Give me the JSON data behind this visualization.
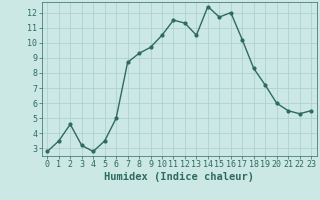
{
  "x": [
    0,
    1,
    2,
    3,
    4,
    5,
    6,
    7,
    8,
    9,
    10,
    11,
    12,
    13,
    14,
    15,
    16,
    17,
    18,
    19,
    20,
    21,
    22,
    23
  ],
  "y": [
    2.8,
    3.5,
    4.6,
    3.2,
    2.8,
    3.5,
    5.0,
    8.7,
    9.3,
    9.7,
    10.5,
    11.5,
    11.3,
    10.5,
    12.4,
    11.7,
    12.0,
    10.2,
    8.3,
    7.2,
    6.0,
    5.5,
    5.3,
    5.5
  ],
  "line_color": "#2e6b5e",
  "marker": "o",
  "markersize": 2.0,
  "linewidth": 1.0,
  "xlabel": "Humidex (Indice chaleur)",
  "xlim": [
    -0.5,
    23.5
  ],
  "ylim": [
    2.5,
    12.7
  ],
  "yticks": [
    3,
    4,
    5,
    6,
    7,
    8,
    9,
    10,
    11,
    12
  ],
  "xticks": [
    0,
    1,
    2,
    3,
    4,
    5,
    6,
    7,
    8,
    9,
    10,
    11,
    12,
    13,
    14,
    15,
    16,
    17,
    18,
    19,
    20,
    21,
    22,
    23
  ],
  "bg_color": "#cce8e4",
  "grid_color": "#aacfcb",
  "tick_color": "#2e6b5e",
  "label_color": "#2e6b5e",
  "xlabel_fontsize": 7.5,
  "tick_fontsize": 6.0
}
